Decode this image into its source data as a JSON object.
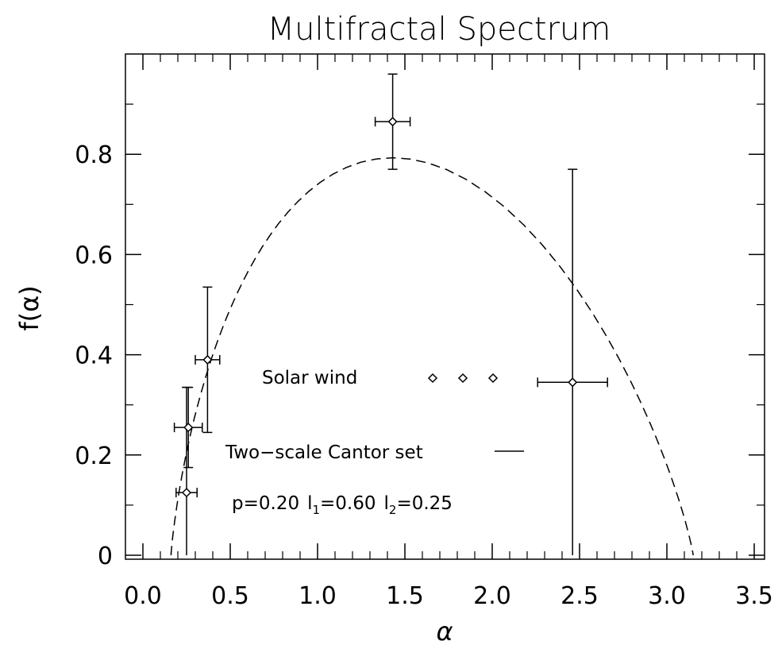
{
  "chart_data": {
    "type": "scatter",
    "title": "Multifractal Spectrum",
    "xlabel": "α",
    "ylabel": "f(α)",
    "xlim": [
      0.0,
      3.5
    ],
    "ylim": [
      0.0,
      1.0
    ],
    "x_ticks": [
      "0.0",
      "0.5",
      "1.0",
      "1.5",
      "2.0",
      "2.5",
      "3.0",
      "3.5"
    ],
    "x_tick_values": [
      0.0,
      0.5,
      1.0,
      1.5,
      2.0,
      2.5,
      3.0,
      3.5
    ],
    "y_ticks": [
      "0",
      "0.2",
      "0.4",
      "0.6",
      "0.8"
    ],
    "y_tick_values": [
      0.0,
      0.2,
      0.4,
      0.6,
      0.8
    ],
    "grid": false,
    "series": [
      {
        "name": "Solar wind",
        "marker": "diamond",
        "points": [
          {
            "x": 0.25,
            "y": 0.125,
            "xerr_low": 0.06,
            "xerr_high": 0.06,
            "y_low": 0.0,
            "y_high": 0.335
          },
          {
            "x": 0.26,
            "y": 0.255,
            "xerr_low": 0.08,
            "xerr_high": 0.08,
            "y_low": 0.175,
            "y_high": 0.335
          },
          {
            "x": 0.37,
            "y": 0.39,
            "xerr_low": 0.07,
            "xerr_high": 0.07,
            "y_low": 0.245,
            "y_high": 0.535
          },
          {
            "x": 1.43,
            "y": 0.865,
            "xerr_low": 0.1,
            "xerr_high": 0.1,
            "y_low": 0.77,
            "y_high": 0.96
          },
          {
            "x": 2.46,
            "y": 0.345,
            "xerr_low": 0.2,
            "xerr_high": 0.2,
            "y_low": 0.0,
            "y_high": 0.77
          }
        ]
      },
      {
        "name": "Two−scale Cantor set",
        "style": "dashed",
        "params": {
          "p": 0.2,
          "l1": 0.6,
          "l2": 0.25
        }
      }
    ],
    "annotations": {
      "legend_solar": "Solar wind",
      "legend_cantor": "Two−scale Cantor set",
      "params_p": "p=0.20",
      "params_l1_label": "l",
      "params_l1_sub": "1",
      "params_l1_val": "=0.60",
      "params_l2_label": "l",
      "params_l2_sub": "2",
      "params_l2_val": "=0.25"
    }
  }
}
